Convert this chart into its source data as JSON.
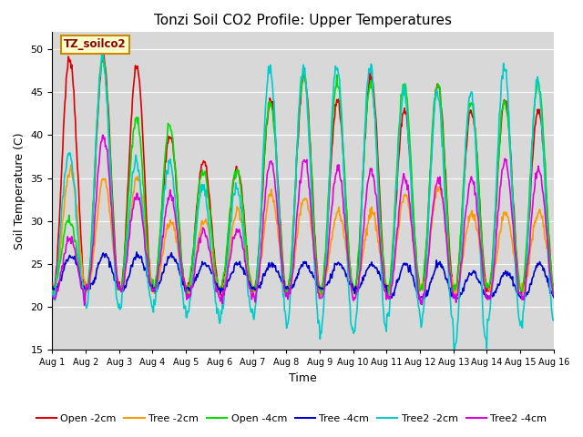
{
  "title": "Tonzi Soil CO2 Profile: Upper Temperatures",
  "xlabel": "Time",
  "ylabel": "Soil Temperature (C)",
  "ylim": [
    15,
    52
  ],
  "yticks": [
    15,
    20,
    25,
    30,
    35,
    40,
    45,
    50
  ],
  "series": {
    "Open -2cm": {
      "color": "#dd0000",
      "lw": 1.2
    },
    "Tree -2cm": {
      "color": "#ff9900",
      "lw": 1.2
    },
    "Open -4cm": {
      "color": "#00dd00",
      "lw": 1.2
    },
    "Tree -4cm": {
      "color": "#0000cc",
      "lw": 1.2
    },
    "Tree2 -2cm": {
      "color": "#00cccc",
      "lw": 1.2
    },
    "Tree2 -4cm": {
      "color": "#dd00dd",
      "lw": 1.2
    }
  },
  "annotation_text": "TZ_soilco2",
  "plot_bg": "#d8d8d8",
  "grid_color": "#ffffff"
}
